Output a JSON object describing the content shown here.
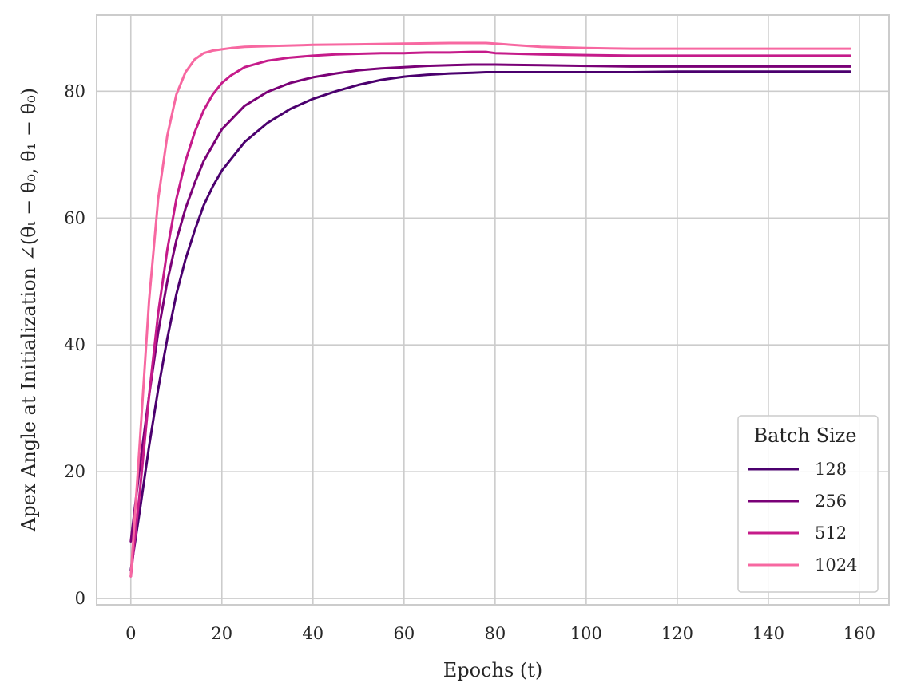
{
  "chart_data": {
    "type": "line",
    "xlabel": "Epochs (t)",
    "ylabel": "Apex Angle at Initialization ∠(θₜ − θ₀, θ₁ − θ₀)",
    "xlim": [
      -7.5,
      166.5
    ],
    "ylim": [
      -1,
      92
    ],
    "xticks": [
      0,
      20,
      40,
      60,
      80,
      100,
      120,
      140,
      160
    ],
    "yticks": [
      0,
      20,
      40,
      60,
      80
    ],
    "grid": true,
    "legend": {
      "title": "Batch Size",
      "placement": "lower-right"
    },
    "series": [
      {
        "name": "128",
        "color": "#4b006e",
        "x": [
          0,
          2,
          4,
          6,
          8,
          10,
          12,
          14,
          16,
          18,
          20,
          25,
          30,
          35,
          40,
          45,
          50,
          55,
          60,
          65,
          70,
          75,
          78,
          80,
          90,
          100,
          110,
          120,
          130,
          140,
          150,
          158
        ],
        "y": [
          4.5,
          14,
          24,
          33,
          41,
          48,
          53.5,
          58,
          62,
          65,
          67.5,
          72,
          75,
          77.2,
          78.8,
          80,
          81,
          81.8,
          82.3,
          82.6,
          82.8,
          82.9,
          83.0,
          83.0,
          83.0,
          83.0,
          83.0,
          83.1,
          83.1,
          83.1,
          83.1,
          83.1
        ]
      },
      {
        "name": "256",
        "color": "#7a0177",
        "x": [
          0,
          2,
          4,
          6,
          8,
          10,
          12,
          14,
          16,
          18,
          20,
          25,
          30,
          35,
          40,
          45,
          50,
          55,
          60,
          65,
          70,
          75,
          78,
          80,
          90,
          100,
          110,
          120,
          130,
          140,
          150,
          158
        ],
        "y": [
          9,
          21,
          32,
          42,
          50,
          56.5,
          61.5,
          65.5,
          69,
          71.5,
          74,
          77.7,
          79.9,
          81.3,
          82.2,
          82.8,
          83.3,
          83.6,
          83.8,
          84.0,
          84.1,
          84.2,
          84.2,
          84.2,
          84.1,
          84.0,
          83.9,
          83.9,
          83.9,
          83.9,
          83.9,
          83.9
        ]
      },
      {
        "name": "512",
        "color": "#c51b8a",
        "x": [
          0,
          2,
          4,
          6,
          8,
          10,
          12,
          14,
          16,
          18,
          20,
          22,
          25,
          30,
          35,
          40,
          45,
          50,
          55,
          60,
          65,
          70,
          75,
          78,
          80,
          90,
          100,
          110,
          120,
          130,
          140,
          150,
          158
        ],
        "y": [
          3.5,
          17,
          32,
          45,
          55,
          63,
          69,
          73.5,
          77,
          79.5,
          81.3,
          82.5,
          83.8,
          84.8,
          85.3,
          85.6,
          85.8,
          85.9,
          86.0,
          86.0,
          86.1,
          86.1,
          86.2,
          86.2,
          86.0,
          85.8,
          85.7,
          85.6,
          85.6,
          85.6,
          85.6,
          85.6,
          85.6
        ]
      },
      {
        "name": "1024",
        "color": "#f768a1",
        "x": [
          0,
          2,
          4,
          6,
          8,
          10,
          12,
          14,
          16,
          18,
          20,
          22,
          25,
          30,
          40,
          50,
          60,
          70,
          75,
          78,
          80,
          90,
          100,
          110,
          120,
          130,
          140,
          150,
          158
        ],
        "y": [
          3.5,
          25,
          47,
          63,
          73,
          79.5,
          83,
          85,
          86,
          86.4,
          86.6,
          86.8,
          87,
          87.1,
          87.3,
          87.4,
          87.5,
          87.6,
          87.6,
          87.6,
          87.5,
          87.0,
          86.8,
          86.7,
          86.7,
          86.7,
          86.7,
          86.7,
          86.7
        ]
      }
    ]
  }
}
